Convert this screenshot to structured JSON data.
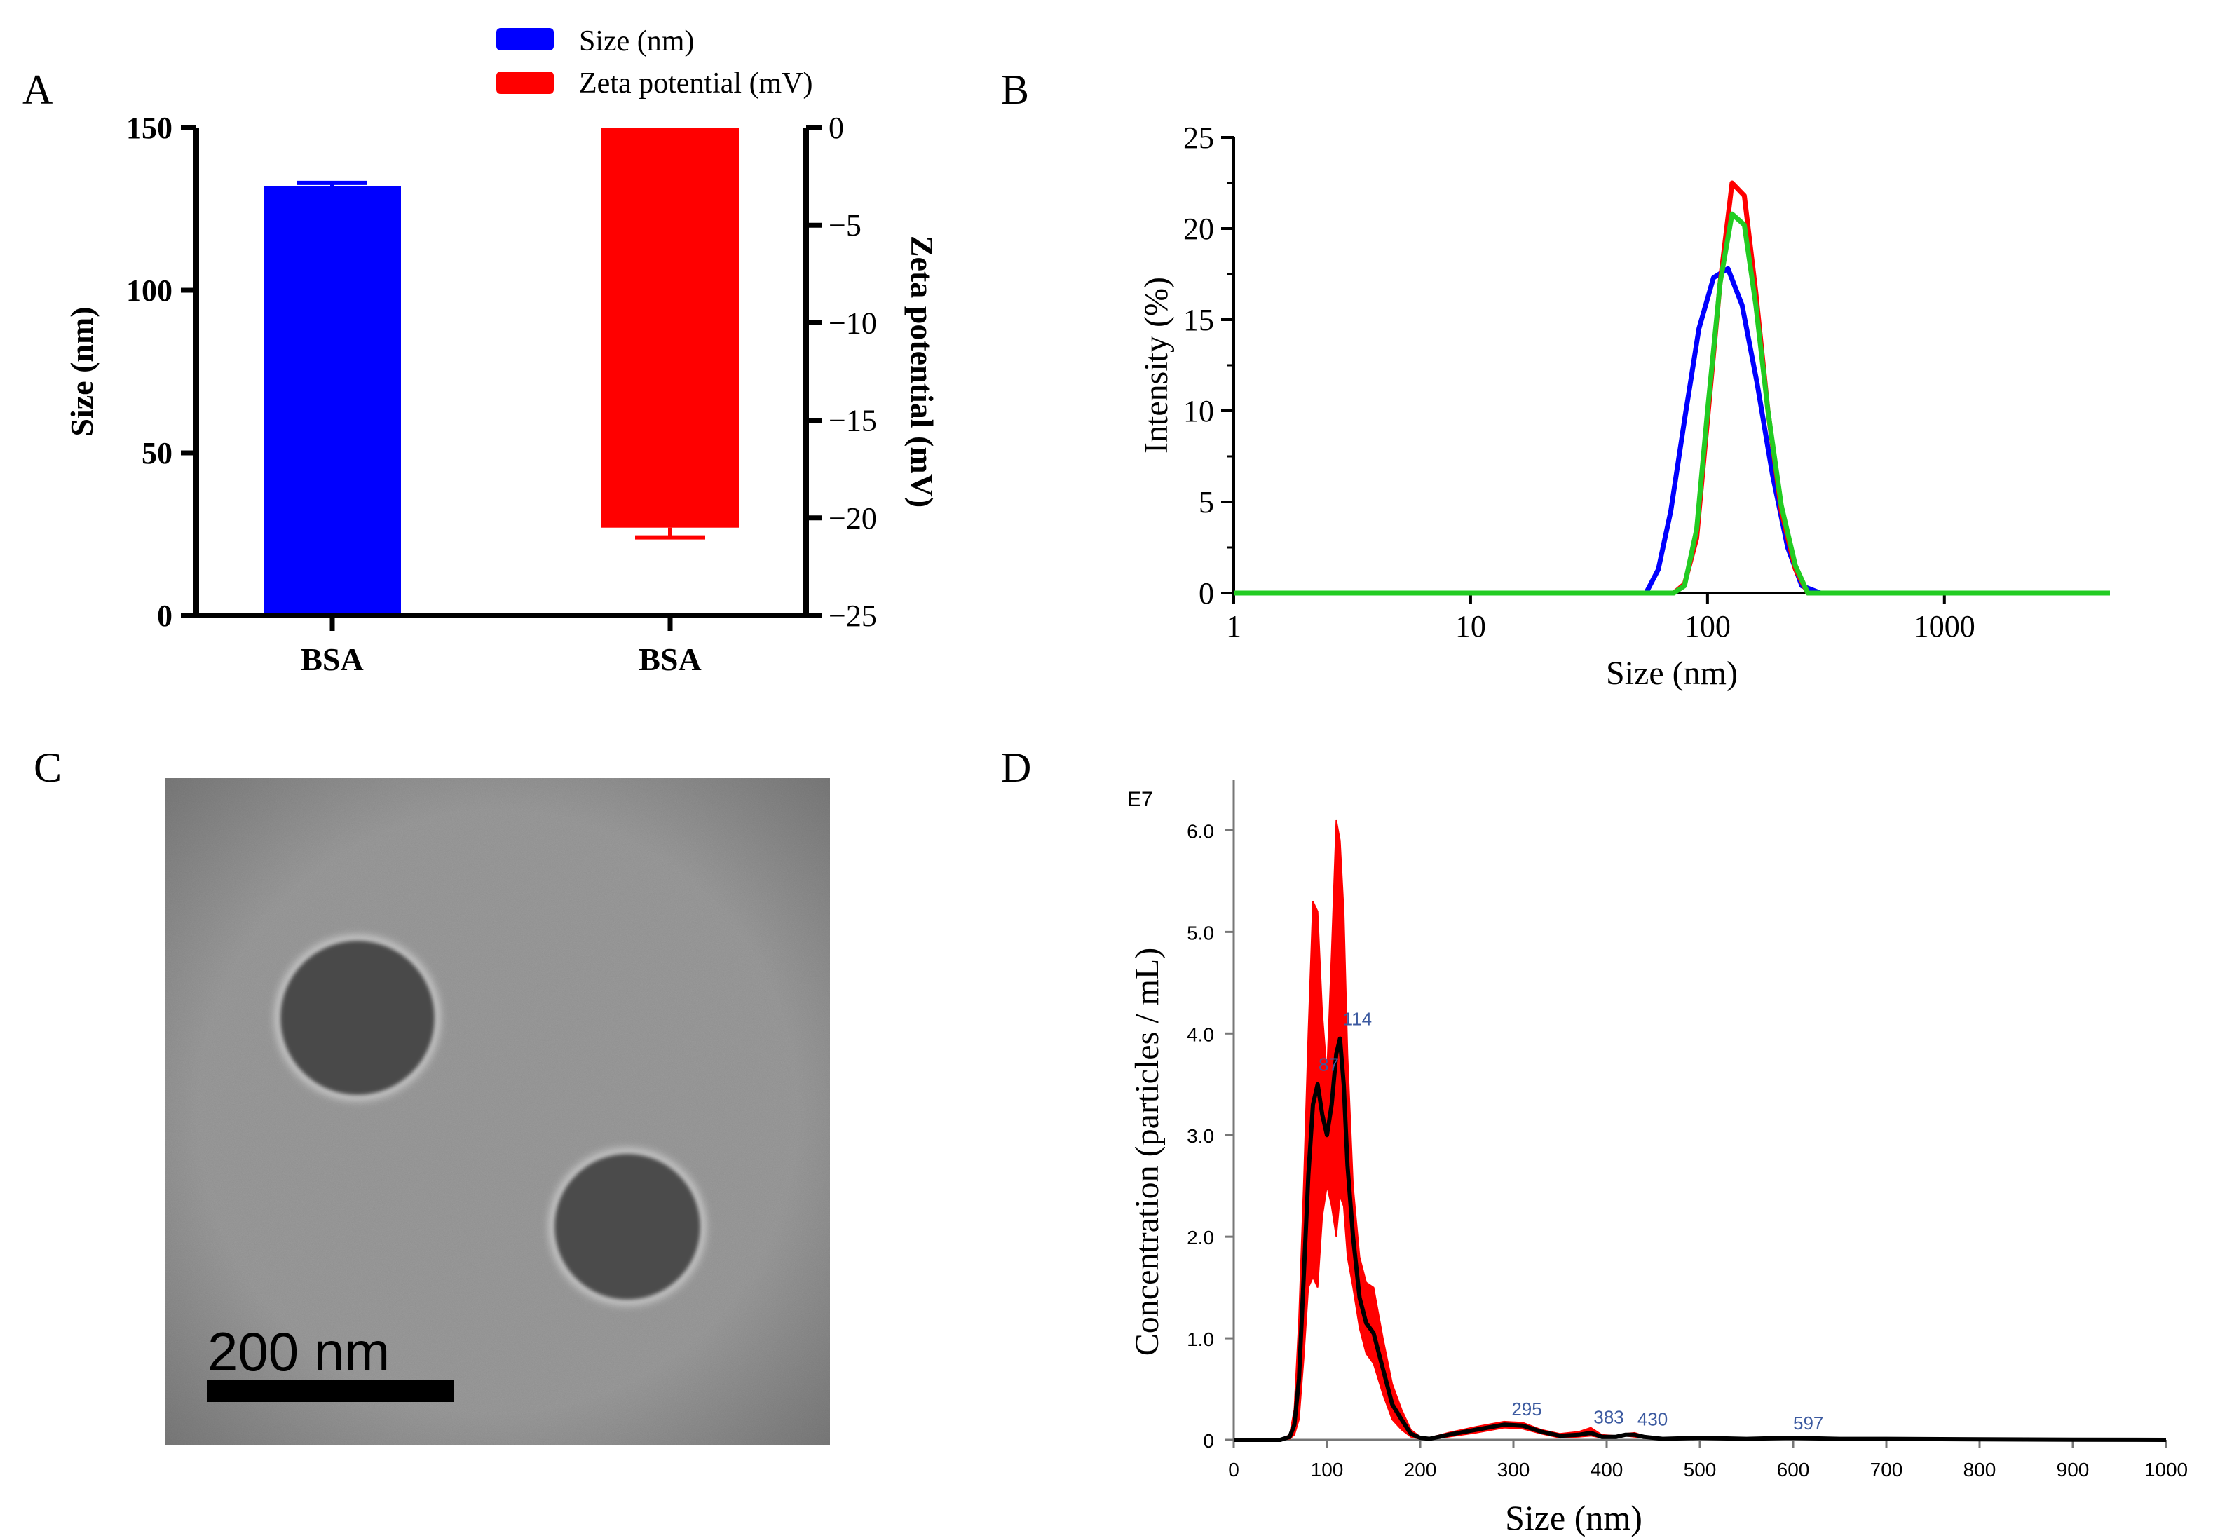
{
  "colors": {
    "blue": "#0000ff",
    "red": "#ff0000",
    "green": "#22cc22",
    "black": "#000000",
    "nta_label": "#3c5aa0"
  },
  "panels": {
    "A": {
      "label": "A"
    },
    "B": {
      "label": "B"
    },
    "C": {
      "label": "C"
    },
    "D": {
      "label": "D"
    }
  },
  "chart_data": [
    {
      "panel": "A",
      "type": "bar",
      "categories": [
        "BSA",
        "BSA"
      ],
      "series": [
        {
          "name": "Size (nm)",
          "axis": "left",
          "category_index": 0,
          "value": 132,
          "error": 1
        },
        {
          "name": "Zeta potential (mV)",
          "axis": "right",
          "category_index": 1,
          "value": -20.5,
          "error": 0.5
        }
      ],
      "legend": [
        "Size (nm)",
        "Zeta potential (mV)"
      ],
      "ylabel_left": "Size (nm)",
      "ylabel_right": "Zeta potential (mV)",
      "ylim_left": [
        0,
        150
      ],
      "ylim_right": [
        -25,
        0
      ],
      "yticks_left": [
        "0",
        "50",
        "100",
        "150"
      ],
      "yticks_right": [
        "0",
        "−5",
        "−10",
        "−15",
        "−20",
        "−25"
      ]
    },
    {
      "panel": "B",
      "type": "line",
      "xscale": "log",
      "xlabel": "Size (nm)",
      "ylabel": "Intensity (%)",
      "xlim": [
        1,
        5000
      ],
      "ylim": [
        0,
        25
      ],
      "xticks": [
        "1",
        "10",
        "100",
        "1000"
      ],
      "yticks": [
        "0",
        "5",
        "10",
        "15",
        "20",
        "25"
      ],
      "series": [
        {
          "name": "run-blue",
          "color": "#0000ff",
          "x": [
            1,
            40,
            55,
            62,
            70,
            80,
            92,
            106,
            122,
            140,
            162,
            188,
            218,
            250,
            300,
            5000
          ],
          "y": [
            0,
            0,
            0,
            1.3,
            4.5,
            9.5,
            14.5,
            17.3,
            17.8,
            15.8,
            11.5,
            6.5,
            2.5,
            0.4,
            0,
            0
          ]
        },
        {
          "name": "run-red",
          "color": "#ff0000",
          "x": [
            1,
            60,
            72,
            80,
            90,
            100,
            113,
            127,
            143,
            160,
            180,
            205,
            235,
            265,
            300,
            5000
          ],
          "y": [
            0,
            0,
            0,
            0.5,
            3,
            9.5,
            17,
            22.5,
            21.8,
            16.5,
            10,
            4.5,
            1.3,
            0,
            0,
            0
          ]
        },
        {
          "name": "run-green",
          "color": "#22cc22",
          "x": [
            1,
            60,
            72,
            80,
            90,
            100,
            113,
            127,
            143,
            160,
            180,
            205,
            235,
            265,
            300,
            5000
          ],
          "y": [
            0,
            0,
            0,
            0.4,
            3.5,
            10,
            17,
            20.8,
            20.2,
            15.8,
            10,
            4.8,
            1.5,
            0,
            0,
            0
          ]
        }
      ]
    },
    {
      "panel": "C",
      "type": "image",
      "scale_bar": "200 nm"
    },
    {
      "panel": "D",
      "type": "area",
      "xlabel": "Size (nm)",
      "ylabel": "Concentration (particles / mL)",
      "y_multiplier": "E7",
      "xlim": [
        0,
        1000
      ],
      "ylim": [
        0,
        6.5
      ],
      "xticks": [
        "0",
        "100",
        "200",
        "300",
        "400",
        "500",
        "600",
        "700",
        "800",
        "900",
        "1000"
      ],
      "yticks": [
        "0",
        "1.0",
        "2.0",
        "3.0",
        "4.0",
        "5.0",
        "6.0"
      ],
      "mean": {
        "x": [
          0,
          50,
          60,
          65,
          70,
          75,
          80,
          85,
          90,
          95,
          100,
          105,
          110,
          114,
          118,
          122,
          128,
          135,
          142,
          150,
          160,
          170,
          180,
          190,
          200,
          210,
          230,
          260,
          290,
          310,
          330,
          350,
          370,
          383,
          395,
          410,
          420,
          430,
          440,
          460,
          500,
          550,
          597,
          650,
          700,
          800,
          900,
          1000
        ],
        "y": [
          0,
          0,
          0.03,
          0.15,
          0.6,
          1.6,
          2.6,
          3.3,
          3.5,
          3.2,
          3.0,
          3.3,
          3.8,
          3.95,
          3.5,
          2.7,
          2.0,
          1.4,
          1.15,
          1.05,
          0.7,
          0.35,
          0.2,
          0.06,
          0.02,
          0.01,
          0.05,
          0.1,
          0.15,
          0.14,
          0.08,
          0.04,
          0.05,
          0.07,
          0.03,
          0.03,
          0.05,
          0.05,
          0.03,
          0.01,
          0.02,
          0.01,
          0.02,
          0.01,
          0.01,
          0.005,
          0.002,
          0
        ]
      },
      "band_upper": {
        "x": [
          0,
          50,
          60,
          65,
          70,
          75,
          80,
          85,
          90,
          95,
          100,
          105,
          110,
          114,
          118,
          122,
          128,
          135,
          142,
          150,
          160,
          170,
          180,
          190,
          200,
          210,
          230,
          260,
          290,
          310,
          330,
          350,
          370,
          383,
          395,
          410,
          420,
          430,
          440,
          460,
          500,
          550,
          597,
          650,
          700,
          800,
          900,
          1000
        ],
        "y": [
          0,
          0,
          0.05,
          0.3,
          1.2,
          2.5,
          4.0,
          5.3,
          5.2,
          4.2,
          3.6,
          4.8,
          6.1,
          5.9,
          5.2,
          3.8,
          2.5,
          1.8,
          1.55,
          1.5,
          1.0,
          0.55,
          0.3,
          0.1,
          0.03,
          0.02,
          0.07,
          0.13,
          0.18,
          0.17,
          0.1,
          0.06,
          0.08,
          0.12,
          0.05,
          0.04,
          0.06,
          0.07,
          0.04,
          0.02,
          0.03,
          0.02,
          0.03,
          0.02,
          0.01,
          0.01,
          0.003,
          0
        ]
      },
      "band_lower": {
        "x": [
          0,
          50,
          60,
          65,
          70,
          75,
          80,
          85,
          90,
          95,
          100,
          105,
          110,
          114,
          118,
          122,
          128,
          135,
          142,
          150,
          160,
          170,
          180,
          190,
          200,
          210,
          230,
          260,
          290,
          310,
          330,
          350,
          370,
          383,
          395,
          410,
          420,
          430,
          440,
          460,
          500,
          550,
          597,
          650,
          700,
          800,
          900,
          1000
        ],
        "y": [
          0,
          0,
          0.01,
          0.05,
          0.2,
          0.8,
          1.5,
          1.6,
          1.5,
          2.2,
          2.5,
          2.3,
          2.0,
          2.4,
          2.3,
          1.8,
          1.5,
          1.1,
          0.85,
          0.75,
          0.45,
          0.2,
          0.1,
          0.03,
          0.01,
          0.005,
          0.03,
          0.07,
          0.12,
          0.11,
          0.06,
          0.02,
          0.03,
          0.04,
          0.02,
          0.02,
          0.04,
          0.03,
          0.02,
          0.005,
          0.01,
          0.005,
          0.01,
          0.005,
          0.005,
          0.002,
          0.001,
          0
        ]
      },
      "peak_labels": [
        {
          "text": "87",
          "x": 88,
          "y": 3.55
        },
        {
          "text": "114",
          "x": 114,
          "y": 4.0
        },
        {
          "text": "295",
          "x": 295,
          "y": 0.16
        },
        {
          "text": "383",
          "x": 383,
          "y": 0.08
        },
        {
          "text": "430",
          "x": 430,
          "y": 0.06
        },
        {
          "text": "597",
          "x": 597,
          "y": 0.02
        }
      ]
    }
  ]
}
